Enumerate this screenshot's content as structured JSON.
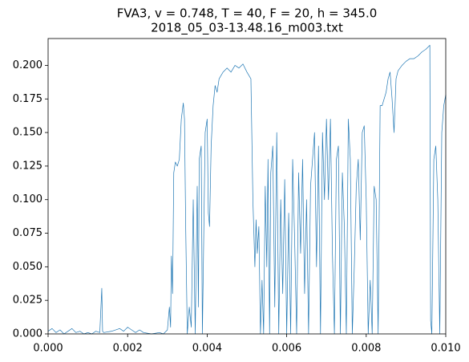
{
  "chart_data": {
    "type": "line",
    "title": "FVA3, v = 0.748, T = 40, F = 20, h = 345.0",
    "subtitle": "2018_05_03-13.48.16_m003.txt",
    "color": "#1f77b4",
    "xlim": [
      0,
      0.01
    ],
    "ylim": [
      0,
      0.22
    ],
    "xticks": [
      {
        "value": 0,
        "label": "0.000"
      },
      {
        "value": 0.002,
        "label": "0.002"
      },
      {
        "value": 0.004,
        "label": "0.004"
      },
      {
        "value": 0.006,
        "label": "0.006"
      },
      {
        "value": 0.008,
        "label": "0.008"
      },
      {
        "value": 0.01,
        "label": "0.010"
      }
    ],
    "yticks": [
      {
        "value": 0,
        "label": "0.000"
      },
      0.025,
      {
        "value": 0.05,
        "label": "0.050"
      },
      0.075,
      {
        "value": 0.1,
        "label": "0.100"
      },
      0.125,
      {
        "value": 0.15,
        "label": "0.150"
      },
      0.175,
      {
        "value": 0.2,
        "label": "0.200"
      }
    ],
    "x": [
      0,
      0.0001,
      0.0002,
      0.0003,
      0.0004,
      0.0005,
      0.0006,
      0.0007,
      0.0008,
      0.0009,
      0.001,
      0.0011,
      0.0012,
      0.0013,
      0.00135,
      0.00137,
      0.0014,
      0.0016,
      0.0018,
      0.0019,
      0.002,
      0.0021,
      0.0022,
      0.0023,
      0.0024,
      0.0026,
      0.0028,
      0.0029,
      0.003,
      0.00305,
      0.00308,
      0.0031,
      0.00313,
      0.00316,
      0.0032,
      0.00325,
      0.0033,
      0.00335,
      0.0034,
      0.00343,
      0.00346,
      0.0035,
      0.00355,
      0.0036,
      0.00365,
      0.0037,
      0.00375,
      0.00378,
      0.0038,
      0.00385,
      0.00388,
      0.00395,
      0.004,
      0.00403,
      0.00406,
      0.0041,
      0.00415,
      0.0042,
      0.00425,
      0.0043,
      0.0044,
      0.0045,
      0.0046,
      0.0047,
      0.0048,
      0.0049,
      0.005,
      0.0051,
      0.00515,
      0.0052,
      0.00523,
      0.00526,
      0.0053,
      0.00534,
      0.00538,
      0.00542,
      0.00546,
      0.0055,
      0.00553,
      0.00557,
      0.0056,
      0.00565,
      0.0057,
      0.00575,
      0.0058,
      0.00585,
      0.0059,
      0.00595,
      0.006,
      0.00605,
      0.0061,
      0.00615,
      0.0062,
      0.00625,
      0.0063,
      0.00635,
      0.0064,
      0.00645,
      0.0065,
      0.00655,
      0.0066,
      0.00665,
      0.0067,
      0.00675,
      0.0068,
      0.00685,
      0.0069,
      0.00695,
      0.007,
      0.00705,
      0.0071,
      0.00715,
      0.0072,
      0.00725,
      0.0073,
      0.00735,
      0.0074,
      0.00745,
      0.0075,
      0.00755,
      0.0076,
      0.00765,
      0.0077,
      0.00775,
      0.0078,
      0.00785,
      0.0079,
      0.00795,
      0.008,
      0.00805,
      0.0081,
      0.00815,
      0.0082,
      0.00825,
      0.0083,
      0.00835,
      0.0084,
      0.0085,
      0.00855,
      0.0086,
      0.00865,
      0.0087,
      0.00875,
      0.0088,
      0.0089,
      0.009,
      0.0091,
      0.0092,
      0.0093,
      0.0094,
      0.0095,
      0.0096,
      0.00962,
      0.00965,
      0.0097,
      0.00975,
      0.0098,
      0.00985,
      0.0099,
      0.00995,
      0.01
    ],
    "values": [
      0.002,
      0.004,
      0.001,
      0.003,
      0,
      0.002,
      0.004,
      0.001,
      0.002,
      0,
      0.001,
      0,
      0.002,
      0.001,
      0.034,
      0.002,
      0.001,
      0.002,
      0.004,
      0.002,
      0.005,
      0.003,
      0.001,
      0.003,
      0.001,
      0,
      0.001,
      0,
      0.003,
      0.02,
      0.005,
      0.058,
      0.03,
      0.12,
      0.128,
      0.125,
      0.13,
      0.16,
      0.172,
      0.16,
      0.08,
      0,
      0.02,
      0.005,
      0.1,
      0,
      0.11,
      0.02,
      0.13,
      0.14,
      0,
      0.15,
      0.16,
      0.09,
      0.08,
      0.14,
      0.17,
      0.185,
      0.18,
      0.19,
      0.195,
      0.198,
      0.195,
      0.2,
      0.198,
      0.201,
      0.195,
      0.19,
      0.1,
      0.05,
      0.085,
      0.06,
      0.08,
      0,
      0.04,
      0,
      0.11,
      0.05,
      0.13,
      0,
      0.12,
      0.14,
      0.02,
      0.15,
      0,
      0.1,
      0.03,
      0.115,
      0,
      0.09,
      0,
      0.13,
      0.07,
      0,
      0.12,
      0.06,
      0.13,
      0.03,
      0.1,
      0,
      0.11,
      0.13,
      0.15,
      0.05,
      0.14,
      0,
      0.15,
      0.1,
      0.16,
      0.1,
      0.16,
      0.06,
      0,
      0.13,
      0.14,
      0,
      0.12,
      0.08,
      0,
      0.16,
      0.13,
      0,
      0.05,
      0.11,
      0.13,
      0.07,
      0.15,
      0.155,
      0.1,
      0,
      0.04,
      0,
      0.11,
      0.1,
      0,
      0.17,
      0.17,
      0.18,
      0.19,
      0.195,
      0.175,
      0.15,
      0.19,
      0.196,
      0.2,
      0.203,
      0.205,
      0.205,
      0.207,
      0.21,
      0.212,
      0.215,
      0.01,
      0,
      0.13,
      0.14,
      0.1,
      0,
      0.15,
      0.17,
      0.178
    ]
  }
}
